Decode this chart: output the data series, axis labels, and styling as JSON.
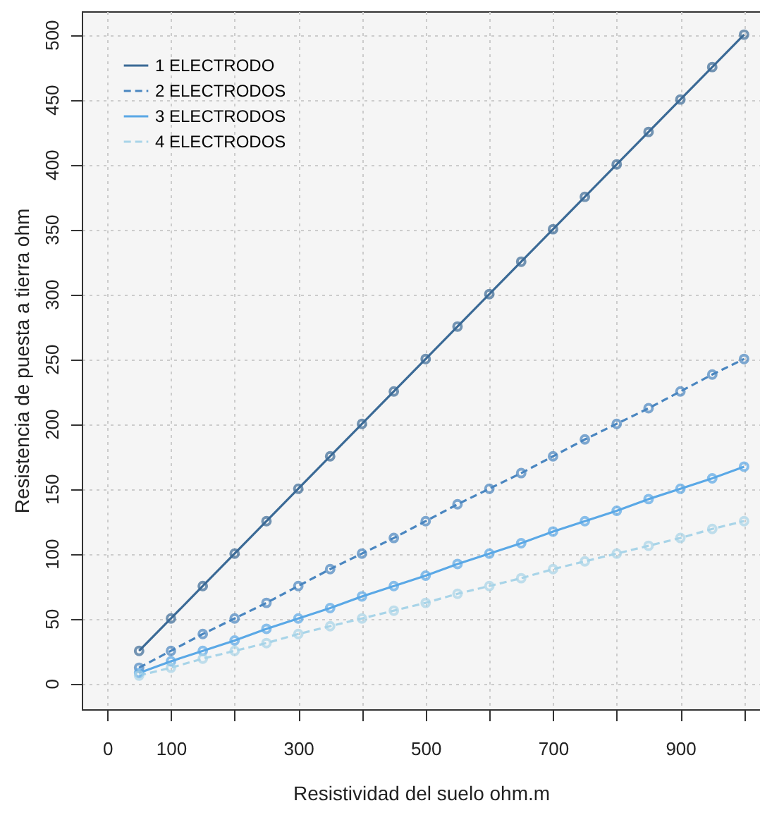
{
  "chart_data": {
    "type": "line",
    "xlabel": "Resistividad del suelo ohm.m",
    "ylabel": "Resistencia de puesta a tierra ohm",
    "x": [
      50,
      100,
      150,
      200,
      250,
      300,
      350,
      400,
      450,
      500,
      550,
      600,
      650,
      700,
      750,
      800,
      850,
      900,
      950,
      1000
    ],
    "series": [
      {
        "name": "1 ELECTRODO",
        "color": "#3b6a96",
        "line_style": "solid",
        "values": [
          25,
          50,
          75,
          100,
          125,
          150,
          175,
          200,
          225,
          250,
          275,
          300,
          325,
          350,
          375,
          400,
          425,
          450,
          475,
          500
        ]
      },
      {
        "name": "2 ELECTRODOS",
        "color": "#4a86c0",
        "line_style": "dashed",
        "values": [
          12,
          25,
          38,
          50,
          62,
          75,
          88,
          100,
          112,
          125,
          138,
          150,
          162,
          175,
          188,
          200,
          212,
          225,
          238,
          250
        ]
      },
      {
        "name": "3 ELECTRODOS",
        "color": "#5aa8e6",
        "line_style": "solid",
        "values": [
          8,
          17,
          25,
          33,
          42,
          50,
          58,
          67,
          75,
          83,
          92,
          100,
          108,
          117,
          125,
          133,
          142,
          150,
          158,
          167
        ]
      },
      {
        "name": "4 ELECTRODOS",
        "color": "#a8d4e8",
        "line_style": "dashed",
        "values": [
          6,
          12,
          19,
          25,
          31,
          38,
          44,
          50,
          56,
          62,
          69,
          75,
          81,
          88,
          94,
          100,
          106,
          112,
          119,
          125
        ]
      }
    ],
    "xlim": [
      -40,
      1025
    ],
    "ylim": [
      -20,
      518
    ],
    "xticks": [
      0,
      100,
      {
        "value": 200,
        "label": null
      },
      300,
      {
        "value": 400,
        "label": null
      },
      500,
      {
        "value": 600,
        "label": null
      },
      700,
      {
        "value": 800,
        "label": null
      },
      900,
      {
        "value": 1000,
        "label": null
      }
    ],
    "yticks": [
      0,
      50,
      100,
      150,
      200,
      250,
      300,
      350,
      400,
      450,
      500
    ],
    "grid": true,
    "legend": "top left",
    "marker": "circle"
  }
}
